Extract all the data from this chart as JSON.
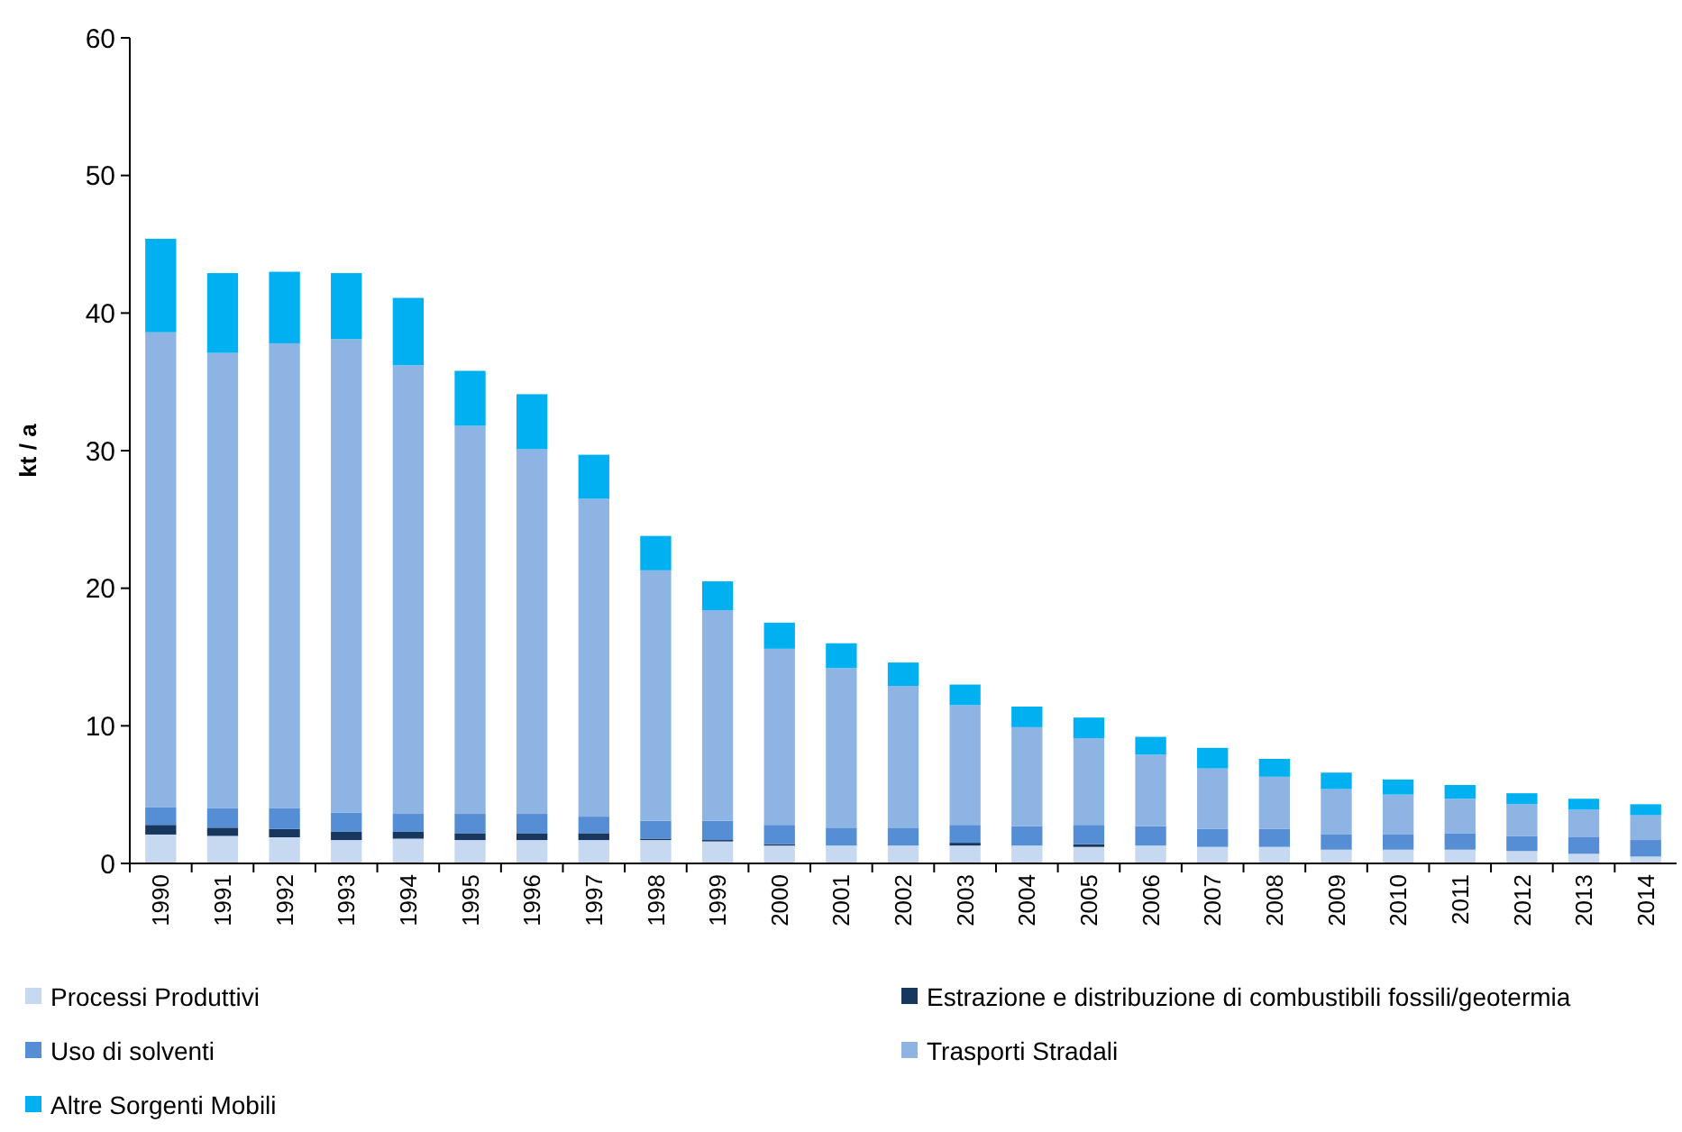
{
  "chart_data": {
    "type": "bar",
    "stacked": true,
    "ylabel": "kt / a",
    "categories": [
      "1990",
      "1991",
      "1992",
      "1993",
      "1994",
      "1995",
      "1996",
      "1997",
      "1998",
      "1999",
      "2000",
      "2001",
      "2002",
      "2003",
      "2004",
      "2005",
      "2006",
      "2007",
      "2008",
      "2009",
      "2010",
      "2011",
      "2012",
      "2013",
      "2014"
    ],
    "series": [
      {
        "name": "Processi Produttivi",
        "color": "#c6d9f1",
        "values": [
          2.1,
          2.0,
          1.9,
          1.7,
          1.8,
          1.7,
          1.7,
          1.7,
          1.7,
          1.6,
          1.3,
          1.3,
          1.3,
          1.3,
          1.3,
          1.2,
          1.3,
          1.2,
          1.2,
          1.0,
          1.0,
          1.0,
          0.9,
          0.7,
          0.5
        ]
      },
      {
        "name": "Estrazione e distribuzione di combustibili fossili/geotermia",
        "color": "#17375e",
        "values": [
          0.7,
          0.6,
          0.6,
          0.6,
          0.5,
          0.5,
          0.5,
          0.5,
          0.1,
          0.1,
          0.1,
          0,
          0,
          0.2,
          0,
          0.2,
          0,
          0,
          0,
          0,
          0,
          0,
          0,
          0,
          0
        ]
      },
      {
        "name": "Uso di solventi",
        "color": "#558ed5",
        "values": [
          1.3,
          1.4,
          1.5,
          1.4,
          1.3,
          1.4,
          1.4,
          1.2,
          1.3,
          1.4,
          1.4,
          1.3,
          1.3,
          1.3,
          1.4,
          1.4,
          1.4,
          1.3,
          1.3,
          1.1,
          1.1,
          1.2,
          1.1,
          1.2,
          1.2
        ]
      },
      {
        "name": "Trasporti Stradali",
        "color": "#8eb4e3",
        "values": [
          34.5,
          33.1,
          33.8,
          34.4,
          32.6,
          28.2,
          26.5,
          23.1,
          18.2,
          15.3,
          12.8,
          11.6,
          10.3,
          8.7,
          7.2,
          6.3,
          5.2,
          4.4,
          3.8,
          3.3,
          2.9,
          2.5,
          2.3,
          2.0,
          1.8
        ]
      },
      {
        "name": "Altre Sorgenti Mobili",
        "color": "#00b0f0",
        "values": [
          6.8,
          5.8,
          5.2,
          4.8,
          4.9,
          4.0,
          4.0,
          3.2,
          2.5,
          2.1,
          1.9,
          1.8,
          1.7,
          1.5,
          1.5,
          1.5,
          1.3,
          1.5,
          1.3,
          1.2,
          1.1,
          1.0,
          0.8,
          0.8,
          0.8
        ]
      }
    ],
    "ylim": [
      0,
      60
    ],
    "yticks": [
      0,
      10,
      20,
      30,
      40,
      50,
      60
    ],
    "legend": "bottom"
  }
}
